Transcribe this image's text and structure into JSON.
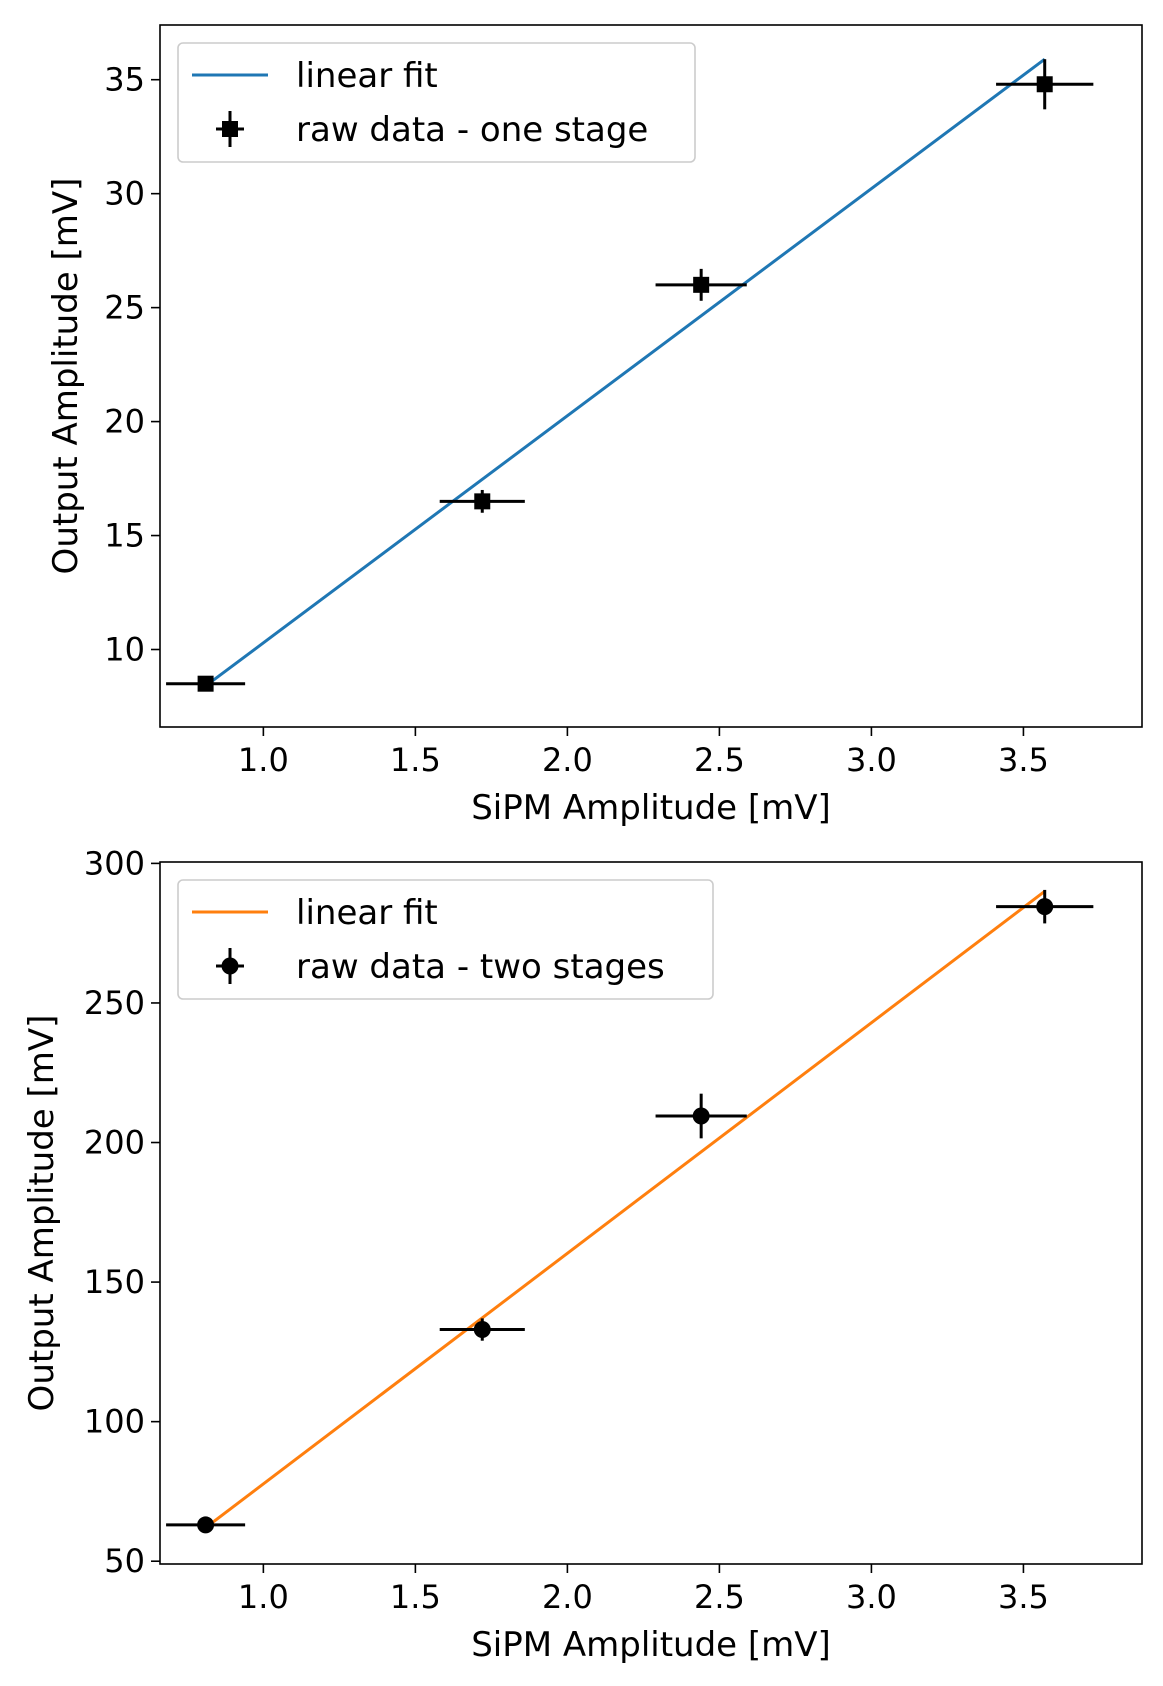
{
  "chart_data": [
    {
      "type": "scatter",
      "xlabel": "SiPM Amplitude [mV]",
      "ylabel": "Output Amplitude [mV]",
      "xlim": [
        0.66,
        3.89
      ],
      "ylim": [
        6.6,
        37.4
      ],
      "xticks": [
        1.0,
        1.5,
        2.0,
        2.5,
        3.0,
        3.5
      ],
      "xtick_labels": [
        "1.0",
        "1.5",
        "2.0",
        "2.5",
        "3.0",
        "3.5"
      ],
      "yticks": [
        10,
        15,
        20,
        25,
        30,
        35
      ],
      "ytick_labels": [
        "10",
        "15",
        "20",
        "25",
        "30",
        "35"
      ],
      "grid": false,
      "legend": "top-left",
      "series": [
        {
          "name": "linear fit",
          "kind": "line",
          "color": "#1f77b4",
          "x": [
            0.81,
            3.57
          ],
          "y": [
            8.4,
            35.9
          ]
        },
        {
          "name": "raw data - one stage",
          "kind": "errorbar",
          "marker": "square",
          "color": "#000000",
          "x": [
            0.81,
            1.72,
            2.44,
            3.57
          ],
          "y": [
            8.5,
            16.5,
            26.0,
            34.8
          ],
          "xerr": [
            0.13,
            0.14,
            0.15,
            0.16
          ],
          "yerr": [
            0.3,
            0.5,
            0.7,
            1.1
          ]
        }
      ]
    },
    {
      "type": "scatter",
      "xlabel": "SiPM Amplitude [mV]",
      "ylabel": "Output Amplitude [mV]",
      "xlim": [
        0.66,
        3.89
      ],
      "ylim": [
        49.0,
        300.5
      ],
      "xticks": [
        1.0,
        1.5,
        2.0,
        2.5,
        3.0,
        3.5
      ],
      "xtick_labels": [
        "1.0",
        "1.5",
        "2.0",
        "2.5",
        "3.0",
        "3.5"
      ],
      "yticks": [
        50,
        100,
        150,
        200,
        250,
        300
      ],
      "ytick_labels": [
        "50",
        "100",
        "150",
        "200",
        "250",
        "300"
      ],
      "grid": false,
      "legend": "top-left",
      "series": [
        {
          "name": "linear fit",
          "kind": "line",
          "color": "#ff7f0e",
          "x": [
            0.81,
            3.57
          ],
          "y": [
            62.0,
            290.0
          ]
        },
        {
          "name": "raw data - two stages",
          "kind": "errorbar",
          "marker": "circle",
          "color": "#000000",
          "x": [
            0.81,
            1.72,
            2.44,
            3.57
          ],
          "y": [
            63.0,
            133.0,
            209.5,
            284.5
          ],
          "xerr": [
            0.13,
            0.14,
            0.15,
            0.16
          ],
          "yerr": [
            2.5,
            4.0,
            8.0,
            6.0
          ]
        }
      ]
    }
  ]
}
